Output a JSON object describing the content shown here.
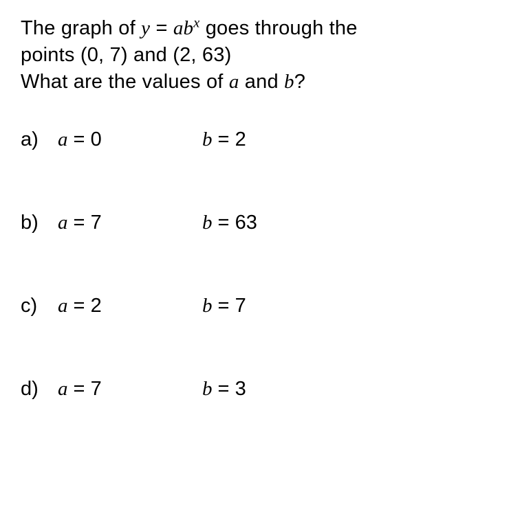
{
  "question": {
    "line1_pre": "The graph of ",
    "y": "y",
    "eq": " = ",
    "a": "a",
    "b": "b",
    "exp": "x",
    "line1_post": " goes through the",
    "line2": "points (0, 7) and (2, 63)",
    "line3_pre": "What are the values of ",
    "line3_mid": " and ",
    "line3_post": "?"
  },
  "options": [
    {
      "label": "a)",
      "a_var": "a",
      "a_eq": " = ",
      "a_val": "0",
      "b_var": "b",
      "b_eq": " = ",
      "b_val": "2"
    },
    {
      "label": "b)",
      "a_var": "a",
      "a_eq": " = ",
      "a_val": "7",
      "b_var": "b",
      "b_eq": " = ",
      "b_val": "63"
    },
    {
      "label": "c)",
      "a_var": "a",
      "a_eq": " = ",
      "a_val": "2",
      "b_var": "b",
      "b_eq": " = ",
      "b_val": "7"
    },
    {
      "label": "d)",
      "a_var": "a",
      "a_eq": " = ",
      "a_val": "7",
      "b_var": "b",
      "b_eq": " = ",
      "b_val": "3"
    }
  ],
  "style": {
    "background_color": "#ffffff",
    "text_color": "#000000",
    "font_size_question": 29,
    "font_size_options": 29,
    "option_vertical_gap": 88,
    "label_col_width": 54,
    "first_eq_col_width": 210,
    "italic_font_family": "Georgia"
  }
}
